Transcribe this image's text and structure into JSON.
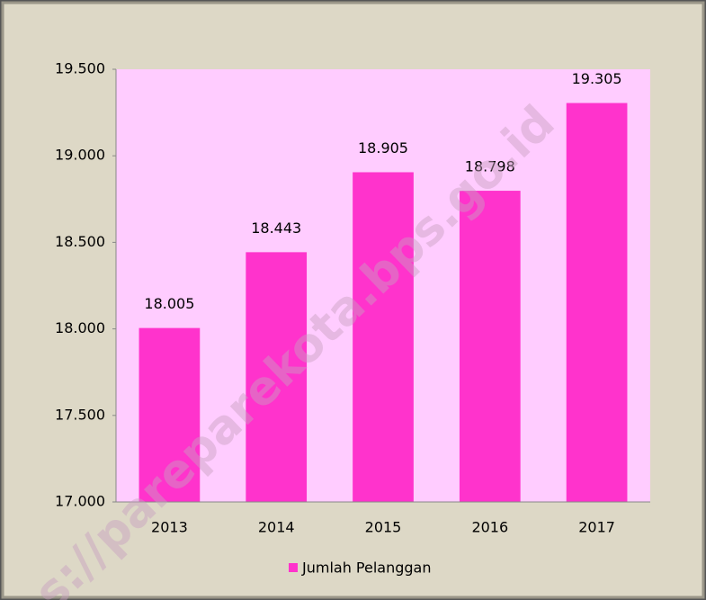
{
  "chart_data": {
    "type": "bar",
    "categories": [
      "2013",
      "2014",
      "2015",
      "2016",
      "2017"
    ],
    "values": [
      18005,
      18443,
      18905,
      18798,
      19305
    ],
    "value_labels": [
      "18.005",
      "18.443",
      "18.905",
      "18.798",
      "19.305"
    ],
    "series_name": "Jumlah Pelanggan",
    "color": "#ff33cc",
    "plot_background": "#ffccff",
    "ylim": [
      17000,
      19500
    ],
    "yticks": [
      {
        "value": 17000,
        "label": "17.000"
      },
      {
        "value": 17500,
        "label": "17.500"
      },
      {
        "value": 18000,
        "label": "18.000"
      },
      {
        "value": 18500,
        "label": "18.500"
      },
      {
        "value": 19000,
        "label": "19.000"
      },
      {
        "value": 19500,
        "label": "19.500"
      }
    ],
    "legend": "bottom",
    "watermark": "s://pareparekota.bps.go.id"
  }
}
